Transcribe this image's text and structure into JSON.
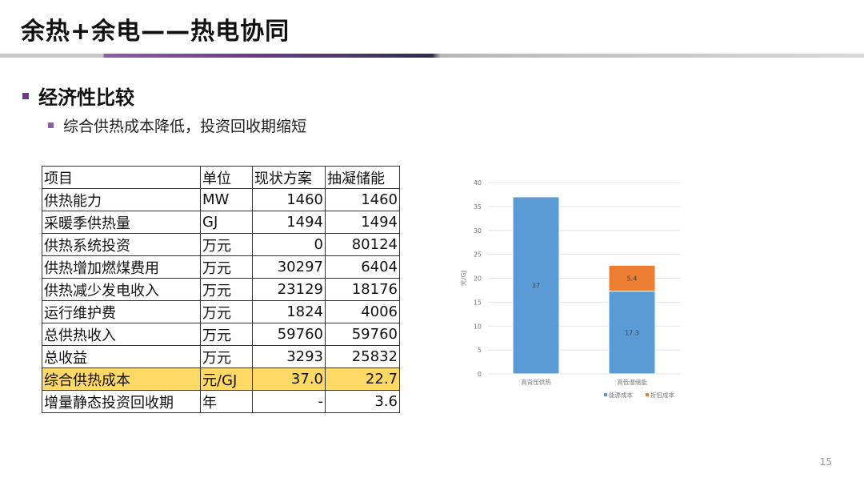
{
  "slide": {
    "title": "余热+余电——热电协同",
    "bullet1": "经济性比较",
    "bullet2": "综合供热成本降低，投资回收期缩短",
    "page_number": "15",
    "accent_color": "#6b3a86"
  },
  "table": {
    "headers": [
      "项目",
      "单位",
      "现状方案",
      "抽凝储能"
    ],
    "rows": [
      [
        "供热能力",
        "MW",
        "1460",
        "1460"
      ],
      [
        "采暖季供热量",
        "GJ",
        "1494",
        "1494"
      ],
      [
        "供热系统投资",
        "万元",
        "0",
        "80124"
      ],
      [
        "供热增加燃煤费用",
        "万元",
        "30297",
        "6404"
      ],
      [
        "供热减少发电收入",
        "万元",
        "23129",
        "18176"
      ],
      [
        "运行维护费",
        "万元",
        "1824",
        "4006"
      ],
      [
        "总供热收入",
        "万元",
        "59760",
        "59760"
      ],
      [
        "总收益",
        "万元",
        "3293",
        "25832"
      ],
      [
        "综合供热成本",
        "元/GJ",
        "37.0",
        "22.7"
      ],
      [
        "增量静态投资回收期",
        "年",
        "-",
        "3.6"
      ]
    ],
    "highlight_color": "#ffd966"
  },
  "chart_data": {
    "type": "bar",
    "stacked": true,
    "categories": [
      "高背压供热",
      "高低温储能"
    ],
    "series": [
      {
        "name": "能源成本",
        "values": [
          37,
          17.3
        ],
        "color": "#5b9bd5",
        "labels": [
          "37",
          "17.3"
        ]
      },
      {
        "name": "折旧成本",
        "values": [
          0,
          5.4
        ],
        "color": "#ed7d31",
        "labels": [
          "",
          "5.4"
        ]
      }
    ],
    "ylabel": "元/GJ",
    "ylim": [
      0,
      40
    ],
    "yticks": [
      "0",
      "5",
      "10",
      "15",
      "20",
      "25",
      "30",
      "35",
      "40"
    ],
    "grid": true,
    "legend_position": "bottom"
  }
}
